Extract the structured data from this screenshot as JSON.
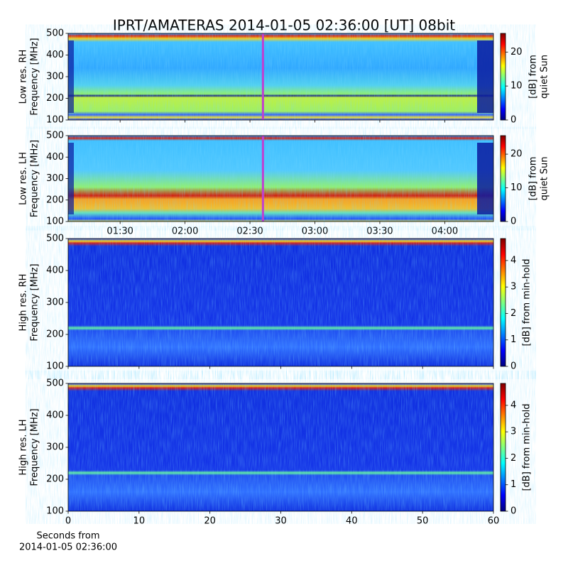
{
  "chart_data": [
    {
      "type": "spectrogram",
      "title": "IPRT/AMATERAS 2014-01-05 02:36:00 [UT]   08bit",
      "ylabel": [
        "Low res. RH",
        "Frequency [MHz]"
      ],
      "ylim": [
        100,
        500
      ],
      "yticks": [
        100,
        200,
        300,
        400,
        500
      ],
      "xlim": [
        66,
        262.5
      ],
      "xticks": [
        90,
        120,
        150,
        180,
        210,
        240
      ],
      "cursor_x": 156,
      "cursor_color": "#c040d0",
      "colormap": "jet",
      "clim": [
        0,
        25.5
      ],
      "cticks": [
        0,
        10,
        20
      ],
      "clabel": [
        "[dB] from",
        "quiet Sun"
      ]
    },
    {
      "type": "spectrogram",
      "ylabel": [
        "Low res. LH",
        "Frequency [MHz]"
      ],
      "ylim": [
        100,
        500
      ],
      "yticks": [
        100,
        200,
        300,
        400,
        500
      ],
      "xlim": [
        66,
        262.5
      ],
      "xticks": [
        {
          "value": 90,
          "label": "01:30"
        },
        {
          "value": 120,
          "label": "02:00"
        },
        {
          "value": 150,
          "label": "02:30"
        },
        {
          "value": 180,
          "label": "03:00"
        },
        {
          "value": 210,
          "label": "03:30"
        },
        {
          "value": 240,
          "label": "04:00"
        }
      ],
      "cursor_x": 156,
      "cursor_color": "#c040d0",
      "colormap": "jet",
      "clim": [
        0,
        25.5
      ],
      "cticks": [
        0,
        10,
        20
      ],
      "clabel": [
        "[dB] from",
        "quiet Sun"
      ]
    },
    {
      "type": "spectrogram",
      "ylabel": [
        "High res. RH",
        "Frequency [MHz]"
      ],
      "ylim": [
        100,
        500
      ],
      "yticks": [
        100,
        200,
        300,
        400,
        500
      ],
      "xlim": [
        0,
        60
      ],
      "xticks": [
        0,
        10,
        20,
        30,
        40,
        50,
        60
      ],
      "colormap": "jet",
      "clim": [
        0,
        4.83
      ],
      "cticks": [
        0,
        1,
        2,
        3,
        4
      ],
      "clabel": [
        "[dB] from min-hold"
      ]
    },
    {
      "type": "spectrogram",
      "ylabel": [
        "High res. LH",
        "Frequency [MHz]"
      ],
      "ylim": [
        100,
        500
      ],
      "yticks": [
        100,
        200,
        300,
        400,
        500
      ],
      "xlim": [
        0,
        60
      ],
      "xticks": [
        0,
        10,
        20,
        30,
        40,
        50,
        60
      ],
      "colormap": "jet",
      "clim": [
        0,
        4.83
      ],
      "cticks": [
        0,
        1,
        2,
        3,
        4
      ],
      "clabel": [
        "[dB] from min-hold"
      ],
      "xlabel": [
        "Seconds from",
        "2014-01-05 02:36:00"
      ]
    }
  ]
}
